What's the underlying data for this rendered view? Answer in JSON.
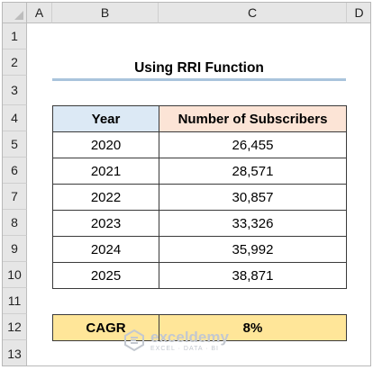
{
  "columns": [
    "A",
    "B",
    "C",
    "D"
  ],
  "rows": [
    "1",
    "2",
    "3",
    "4",
    "5",
    "6",
    "7",
    "8",
    "9",
    "10",
    "11",
    "12",
    "13"
  ],
  "title": "Using RRI Function",
  "table": {
    "headers": [
      "Year",
      "Number of Subscribers"
    ],
    "rows": [
      [
        "2020",
        "26,455"
      ],
      [
        "2021",
        "28,571"
      ],
      [
        "2022",
        "30,857"
      ],
      [
        "2023",
        "33,326"
      ],
      [
        "2024",
        "35,992"
      ],
      [
        "2025",
        "38,871"
      ]
    ]
  },
  "cagr": {
    "label": "CAGR",
    "value": "8%"
  },
  "watermark": {
    "name": "exceldemy",
    "tagline": "EXCEL · DATA · BI"
  },
  "colors": {
    "year_header_fill": "#dce9f5",
    "subs_header_fill": "#fce4d6",
    "cagr_fill": "#ffe699",
    "title_underline": "#a9c4dc"
  }
}
